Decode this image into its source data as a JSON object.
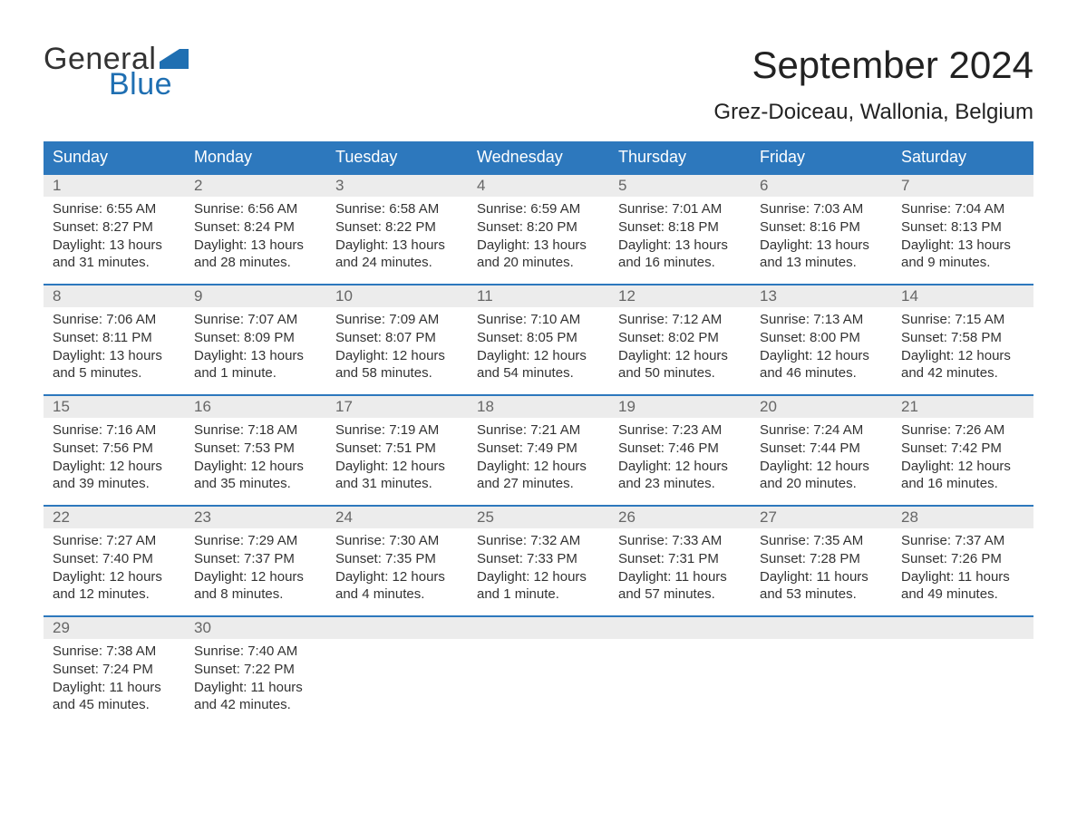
{
  "logo": {
    "text1": "General",
    "text2": "Blue",
    "flag_color": "#1f6fb2",
    "text1_color": "#333333",
    "text2_color": "#1f6fb2"
  },
  "title": "September 2024",
  "location": "Grez-Doiceau, Wallonia, Belgium",
  "colors": {
    "header_bg": "#2d78bd",
    "header_text": "#ffffff",
    "daynum_bg": "#ececec",
    "daynum_text": "#666666",
    "row_border": "#2d78bd",
    "body_text": "#333333",
    "page_bg": "#ffffff"
  },
  "font": {
    "family": "Arial",
    "title_size_pt": 32,
    "location_size_pt": 18,
    "weekday_size_pt": 14,
    "daynum_size_pt": 13,
    "content_size_pt": 11
  },
  "weekdays": [
    "Sunday",
    "Monday",
    "Tuesday",
    "Wednesday",
    "Thursday",
    "Friday",
    "Saturday"
  ],
  "weeks": [
    [
      {
        "n": "1",
        "sunrise": "Sunrise: 6:55 AM",
        "sunset": "Sunset: 8:27 PM",
        "day1": "Daylight: 13 hours",
        "day2": "and 31 minutes."
      },
      {
        "n": "2",
        "sunrise": "Sunrise: 6:56 AM",
        "sunset": "Sunset: 8:24 PM",
        "day1": "Daylight: 13 hours",
        "day2": "and 28 minutes."
      },
      {
        "n": "3",
        "sunrise": "Sunrise: 6:58 AM",
        "sunset": "Sunset: 8:22 PM",
        "day1": "Daylight: 13 hours",
        "day2": "and 24 minutes."
      },
      {
        "n": "4",
        "sunrise": "Sunrise: 6:59 AM",
        "sunset": "Sunset: 8:20 PM",
        "day1": "Daylight: 13 hours",
        "day2": "and 20 minutes."
      },
      {
        "n": "5",
        "sunrise": "Sunrise: 7:01 AM",
        "sunset": "Sunset: 8:18 PM",
        "day1": "Daylight: 13 hours",
        "day2": "and 16 minutes."
      },
      {
        "n": "6",
        "sunrise": "Sunrise: 7:03 AM",
        "sunset": "Sunset: 8:16 PM",
        "day1": "Daylight: 13 hours",
        "day2": "and 13 minutes."
      },
      {
        "n": "7",
        "sunrise": "Sunrise: 7:04 AM",
        "sunset": "Sunset: 8:13 PM",
        "day1": "Daylight: 13 hours",
        "day2": "and 9 minutes."
      }
    ],
    [
      {
        "n": "8",
        "sunrise": "Sunrise: 7:06 AM",
        "sunset": "Sunset: 8:11 PM",
        "day1": "Daylight: 13 hours",
        "day2": "and 5 minutes."
      },
      {
        "n": "9",
        "sunrise": "Sunrise: 7:07 AM",
        "sunset": "Sunset: 8:09 PM",
        "day1": "Daylight: 13 hours",
        "day2": "and 1 minute."
      },
      {
        "n": "10",
        "sunrise": "Sunrise: 7:09 AM",
        "sunset": "Sunset: 8:07 PM",
        "day1": "Daylight: 12 hours",
        "day2": "and 58 minutes."
      },
      {
        "n": "11",
        "sunrise": "Sunrise: 7:10 AM",
        "sunset": "Sunset: 8:05 PM",
        "day1": "Daylight: 12 hours",
        "day2": "and 54 minutes."
      },
      {
        "n": "12",
        "sunrise": "Sunrise: 7:12 AM",
        "sunset": "Sunset: 8:02 PM",
        "day1": "Daylight: 12 hours",
        "day2": "and 50 minutes."
      },
      {
        "n": "13",
        "sunrise": "Sunrise: 7:13 AM",
        "sunset": "Sunset: 8:00 PM",
        "day1": "Daylight: 12 hours",
        "day2": "and 46 minutes."
      },
      {
        "n": "14",
        "sunrise": "Sunrise: 7:15 AM",
        "sunset": "Sunset: 7:58 PM",
        "day1": "Daylight: 12 hours",
        "day2": "and 42 minutes."
      }
    ],
    [
      {
        "n": "15",
        "sunrise": "Sunrise: 7:16 AM",
        "sunset": "Sunset: 7:56 PM",
        "day1": "Daylight: 12 hours",
        "day2": "and 39 minutes."
      },
      {
        "n": "16",
        "sunrise": "Sunrise: 7:18 AM",
        "sunset": "Sunset: 7:53 PM",
        "day1": "Daylight: 12 hours",
        "day2": "and 35 minutes."
      },
      {
        "n": "17",
        "sunrise": "Sunrise: 7:19 AM",
        "sunset": "Sunset: 7:51 PM",
        "day1": "Daylight: 12 hours",
        "day2": "and 31 minutes."
      },
      {
        "n": "18",
        "sunrise": "Sunrise: 7:21 AM",
        "sunset": "Sunset: 7:49 PM",
        "day1": "Daylight: 12 hours",
        "day2": "and 27 minutes."
      },
      {
        "n": "19",
        "sunrise": "Sunrise: 7:23 AM",
        "sunset": "Sunset: 7:46 PM",
        "day1": "Daylight: 12 hours",
        "day2": "and 23 minutes."
      },
      {
        "n": "20",
        "sunrise": "Sunrise: 7:24 AM",
        "sunset": "Sunset: 7:44 PM",
        "day1": "Daylight: 12 hours",
        "day2": "and 20 minutes."
      },
      {
        "n": "21",
        "sunrise": "Sunrise: 7:26 AM",
        "sunset": "Sunset: 7:42 PM",
        "day1": "Daylight: 12 hours",
        "day2": "and 16 minutes."
      }
    ],
    [
      {
        "n": "22",
        "sunrise": "Sunrise: 7:27 AM",
        "sunset": "Sunset: 7:40 PM",
        "day1": "Daylight: 12 hours",
        "day2": "and 12 minutes."
      },
      {
        "n": "23",
        "sunrise": "Sunrise: 7:29 AM",
        "sunset": "Sunset: 7:37 PM",
        "day1": "Daylight: 12 hours",
        "day2": "and 8 minutes."
      },
      {
        "n": "24",
        "sunrise": "Sunrise: 7:30 AM",
        "sunset": "Sunset: 7:35 PM",
        "day1": "Daylight: 12 hours",
        "day2": "and 4 minutes."
      },
      {
        "n": "25",
        "sunrise": "Sunrise: 7:32 AM",
        "sunset": "Sunset: 7:33 PM",
        "day1": "Daylight: 12 hours",
        "day2": "and 1 minute."
      },
      {
        "n": "26",
        "sunrise": "Sunrise: 7:33 AM",
        "sunset": "Sunset: 7:31 PM",
        "day1": "Daylight: 11 hours",
        "day2": "and 57 minutes."
      },
      {
        "n": "27",
        "sunrise": "Sunrise: 7:35 AM",
        "sunset": "Sunset: 7:28 PM",
        "day1": "Daylight: 11 hours",
        "day2": "and 53 minutes."
      },
      {
        "n": "28",
        "sunrise": "Sunrise: 7:37 AM",
        "sunset": "Sunset: 7:26 PM",
        "day1": "Daylight: 11 hours",
        "day2": "and 49 minutes."
      }
    ],
    [
      {
        "n": "29",
        "sunrise": "Sunrise: 7:38 AM",
        "sunset": "Sunset: 7:24 PM",
        "day1": "Daylight: 11 hours",
        "day2": "and 45 minutes."
      },
      {
        "n": "30",
        "sunrise": "Sunrise: 7:40 AM",
        "sunset": "Sunset: 7:22 PM",
        "day1": "Daylight: 11 hours",
        "day2": "and 42 minutes."
      },
      {
        "empty": true
      },
      {
        "empty": true
      },
      {
        "empty": true
      },
      {
        "empty": true
      },
      {
        "empty": true
      }
    ]
  ]
}
